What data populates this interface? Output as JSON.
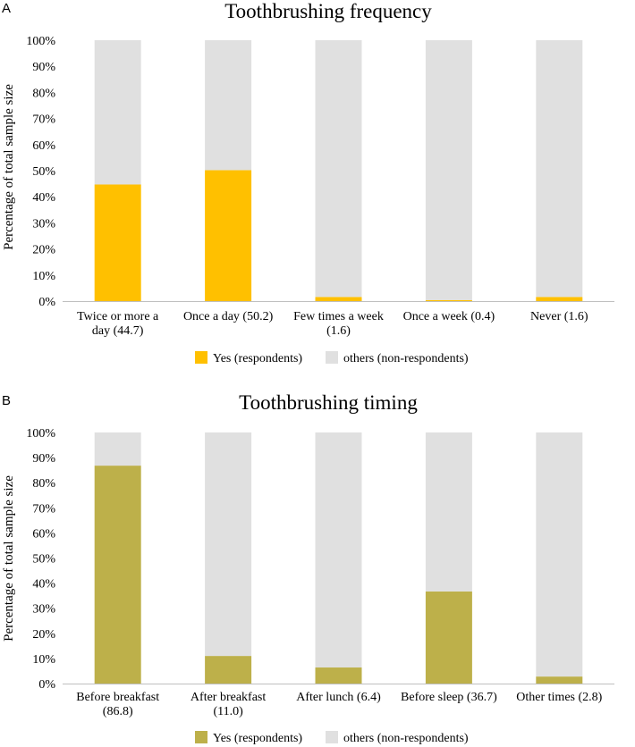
{
  "chart_data": [
    {
      "panel": "A",
      "type": "bar",
      "stacked": true,
      "title": "Toothbrushing frequency",
      "ylabel": "Percentage of total sample size",
      "xlabel": "",
      "ylim": [
        0,
        100
      ],
      "yticks": [
        "0%",
        "10%",
        "20%",
        "30%",
        "40%",
        "50%",
        "60%",
        "70%",
        "80%",
        "90%",
        "100%"
      ],
      "categories": [
        [
          "Twice or more a",
          "day (44.7)"
        ],
        [
          "Once a day (50.2)"
        ],
        [
          "Few times a week",
          "(1.6)"
        ],
        [
          "Once a week (0.4)"
        ],
        [
          "Never (1.6)"
        ]
      ],
      "series": [
        {
          "name": "Yes (respondents)",
          "color": "#FFC000",
          "values": [
            44.7,
            50.2,
            1.6,
            0.4,
            1.6
          ]
        },
        {
          "name": "others (non-respondents)",
          "color": "#E0E0E0",
          "values": [
            55.3,
            49.8,
            98.4,
            99.6,
            98.4
          ]
        }
      ],
      "legend_position": "bottom"
    },
    {
      "panel": "B",
      "type": "bar",
      "stacked": true,
      "title": "Toothbrushing timing",
      "ylabel": "Percentage of total sample size",
      "xlabel": "",
      "ylim": [
        0,
        100
      ],
      "yticks": [
        "0%",
        "10%",
        "20%",
        "30%",
        "40%",
        "50%",
        "60%",
        "70%",
        "80%",
        "90%",
        "100%"
      ],
      "categories": [
        [
          "Before breakfast",
          "(86.8)"
        ],
        [
          "After breakfast",
          "(11.0)"
        ],
        [
          "After lunch (6.4)"
        ],
        [
          "Before sleep (36.7)"
        ],
        [
          "Other times (2.8)"
        ]
      ],
      "series": [
        {
          "name": "Yes (respondents)",
          "color": "#BDB04A",
          "values": [
            86.8,
            11.0,
            6.4,
            36.7,
            2.8
          ]
        },
        {
          "name": "others (non-respondents)",
          "color": "#E0E0E0",
          "values": [
            13.2,
            89.0,
            93.6,
            63.3,
            97.2
          ]
        }
      ],
      "legend_position": "bottom"
    }
  ]
}
